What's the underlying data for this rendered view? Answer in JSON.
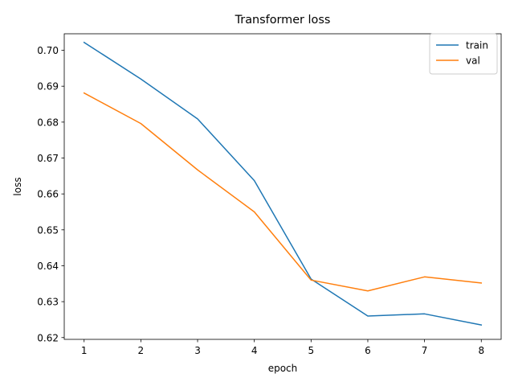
{
  "chart_data": {
    "type": "line",
    "title": "Transformer loss",
    "xlabel": "epoch",
    "ylabel": "loss",
    "x": [
      1,
      2,
      3,
      4,
      5,
      6,
      7,
      8
    ],
    "xlim": [
      0.65,
      8.35
    ],
    "ylim": [
      0.6195,
      0.7046
    ],
    "xticks": [
      "1",
      "2",
      "3",
      "4",
      "5",
      "6",
      "7",
      "8"
    ],
    "yticks": [
      "0.62",
      "0.63",
      "0.64",
      "0.65",
      "0.66",
      "0.67",
      "0.68",
      "0.69",
      "0.70"
    ],
    "grid": false,
    "legend_position": "top-right",
    "series": [
      {
        "name": "train",
        "color": "#1f77b4",
        "values": [
          0.7022,
          0.692,
          0.6809,
          0.6637,
          0.6363,
          0.626,
          0.6266,
          0.6235
        ]
      },
      {
        "name": "val",
        "color": "#ff7f0e",
        "values": [
          0.6881,
          0.6796,
          0.6667,
          0.655,
          0.636,
          0.633,
          0.6369,
          0.6352
        ]
      }
    ]
  }
}
